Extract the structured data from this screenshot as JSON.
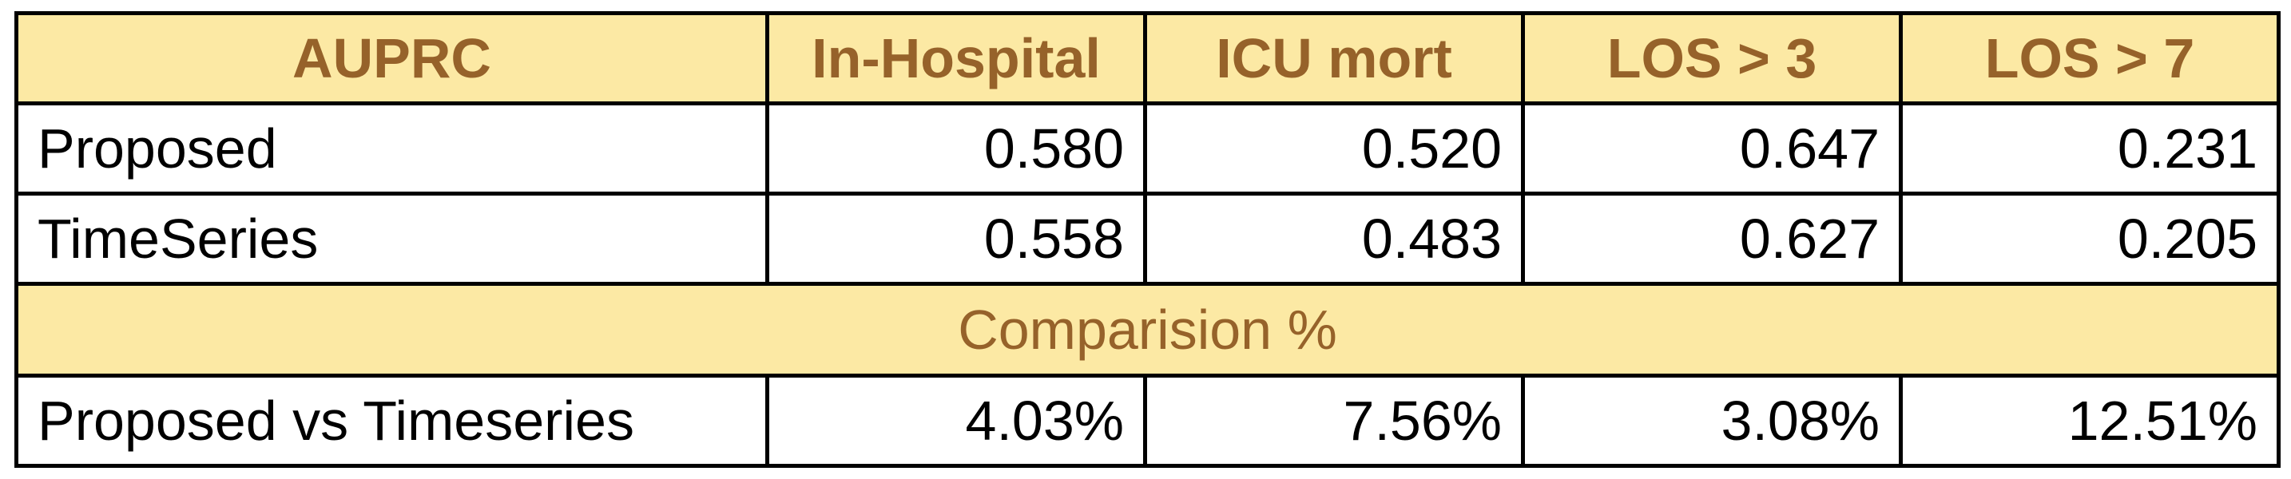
{
  "chart_data": {
    "type": "table",
    "columns": [
      "AUPRC",
      "In-Hospital",
      "ICU mort",
      "LOS > 3",
      "LOS > 7"
    ],
    "rows": [
      {
        "label": "Proposed",
        "values": [
          "0.580",
          "0.520",
          "0.647",
          "0.231"
        ]
      },
      {
        "label": "TimeSeries",
        "values": [
          "0.558",
          "0.483",
          "0.627",
          "0.205"
        ]
      }
    ],
    "section_title": "Comparision %",
    "comparison_rows": [
      {
        "label": "Proposed vs Timeseries",
        "values": [
          "4.03%",
          "7.56%",
          "3.08%",
          "12.51%"
        ]
      }
    ],
    "colors": {
      "header_background": "#fce9a4",
      "header_text": "#96622a",
      "border": "#000000"
    }
  }
}
